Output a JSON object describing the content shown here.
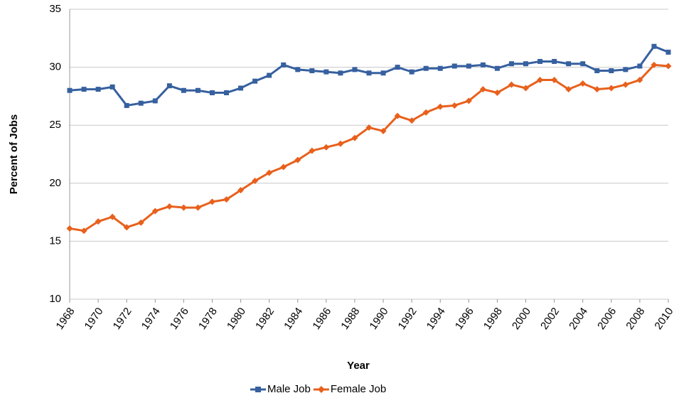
{
  "chart_data": {
    "type": "line",
    "x_label": "Year",
    "y_label": "Percent of Jobs",
    "x": [
      1968,
      1969,
      1970,
      1971,
      1972,
      1973,
      1974,
      1975,
      1976,
      1977,
      1978,
      1979,
      1980,
      1981,
      1982,
      1983,
      1984,
      1985,
      1986,
      1987,
      1988,
      1989,
      1990,
      1991,
      1992,
      1993,
      1994,
      1995,
      1996,
      1997,
      1998,
      1999,
      2000,
      2001,
      2002,
      2003,
      2004,
      2005,
      2006,
      2007,
      2008,
      2009,
      2010
    ],
    "series": [
      {
        "name": "Male Job",
        "color": "#36609f",
        "marker": "square",
        "values": [
          28.0,
          28.1,
          28.1,
          28.3,
          26.7,
          26.9,
          27.1,
          28.4,
          28.0,
          28.0,
          27.8,
          27.8,
          28.2,
          28.8,
          29.3,
          30.2,
          29.8,
          29.7,
          29.6,
          29.5,
          29.8,
          29.5,
          29.5,
          30.0,
          29.6,
          29.9,
          29.9,
          30.1,
          30.1,
          30.2,
          29.9,
          30.3,
          30.3,
          30.5,
          30.5,
          30.3,
          30.3,
          29.7,
          29.7,
          29.8,
          30.1,
          31.8,
          31.3
        ]
      },
      {
        "name": "Female Job",
        "color": "#e8601c",
        "marker": "diamond",
        "values": [
          16.1,
          15.9,
          16.7,
          17.1,
          16.2,
          16.6,
          17.6,
          18.0,
          17.9,
          17.9,
          18.4,
          18.6,
          19.4,
          20.2,
          20.9,
          21.4,
          22.0,
          22.8,
          23.1,
          23.4,
          23.9,
          24.8,
          24.5,
          25.8,
          25.4,
          26.1,
          26.6,
          26.7,
          27.1,
          28.1,
          27.8,
          28.5,
          28.2,
          28.9,
          28.9,
          28.1,
          28.6,
          28.1,
          28.2,
          28.5,
          28.9,
          30.2,
          30.1
        ]
      }
    ],
    "xlim": [
      1968,
      2010
    ],
    "xticks": [
      1968,
      1970,
      1972,
      1974,
      1976,
      1978,
      1980,
      1982,
      1984,
      1986,
      1988,
      1990,
      1992,
      1994,
      1996,
      1998,
      2000,
      2002,
      2004,
      2006,
      2008,
      2010
    ],
    "ylim": [
      10,
      35
    ],
    "yticks": [
      10,
      15,
      20,
      25,
      30,
      35
    ],
    "grid": true,
    "legend": "bottom"
  }
}
